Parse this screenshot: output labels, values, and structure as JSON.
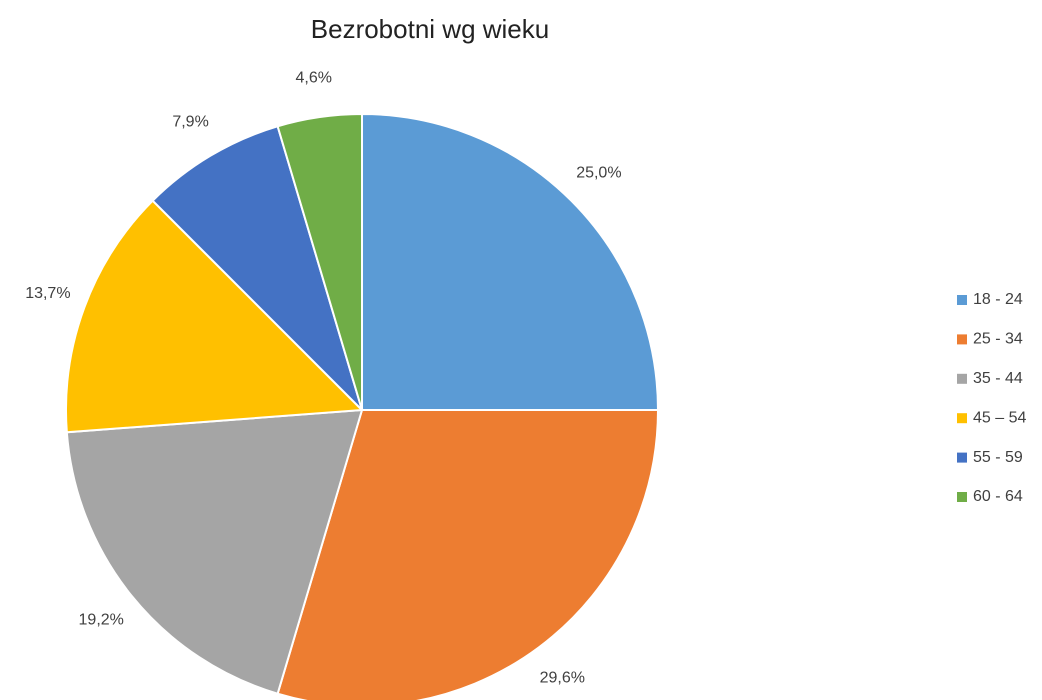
{
  "chart_data": {
    "type": "pie",
    "title": "Bezrobotni wg wieku",
    "categories": [
      "18 - 24",
      "25 - 34",
      "35 - 44",
      "45 – 54",
      "55 - 59",
      "60 - 64"
    ],
    "values": [
      25.0,
      29.6,
      19.2,
      13.7,
      7.9,
      4.6
    ],
    "value_labels": [
      "25,0%",
      "29,6%",
      "19,2%",
      "13,7%",
      "7,9%",
      "4,6%"
    ],
    "colors": [
      "#5b9bd5",
      "#ed7d31",
      "#a5a5a5",
      "#ffc000",
      "#4472c4",
      "#70ad47"
    ],
    "legend": "right"
  }
}
